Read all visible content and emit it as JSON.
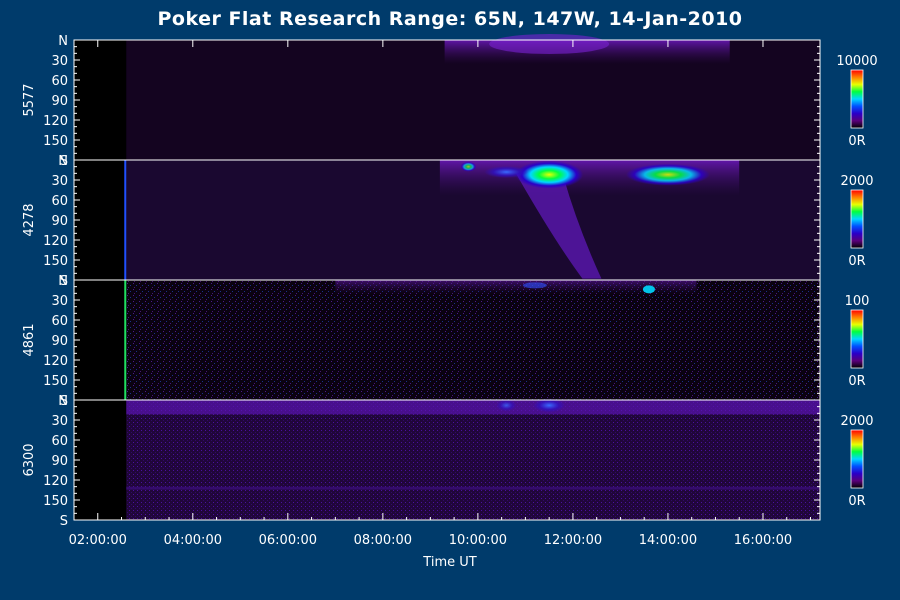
{
  "title": "Poker Flat Research Range: 65N, 147W, 14-Jan-2010",
  "chart_data": {
    "type": "heatmap",
    "xlabel": "Time UT",
    "x_ticks": [
      "02:00:00",
      "04:00:00",
      "06:00:00",
      "08:00:00",
      "10:00:00",
      "12:00:00",
      "14:00:00",
      "16:00:00"
    ],
    "x_tick_hours": [
      2,
      4,
      6,
      8,
      10,
      12,
      14,
      16
    ],
    "xlim_hours": [
      1.5,
      17.2
    ],
    "data_start_hour": 2.6,
    "y_ticks": [
      "N",
      "30",
      "60",
      "90",
      "120",
      "150",
      "S"
    ],
    "y_tick_values": [
      0,
      30,
      60,
      90,
      120,
      150,
      180
    ],
    "ylim": [
      0,
      180
    ],
    "panels": [
      {
        "channel": "5577",
        "cbar_max": "10000",
        "cbar_min": "0R"
      },
      {
        "channel": "4278",
        "cbar_max": "2000",
        "cbar_min": "0R"
      },
      {
        "channel": "4861",
        "cbar_max": "100",
        "cbar_min": "0R"
      },
      {
        "channel": "6300",
        "cbar_max": "2000",
        "cbar_min": "0R"
      }
    ],
    "colormap": [
      "#000000",
      "#5a007a",
      "#2a00c8",
      "#0050ff",
      "#00d8ff",
      "#00ff40",
      "#e8ff00",
      "#ff8000",
      "#ff0000"
    ]
  }
}
